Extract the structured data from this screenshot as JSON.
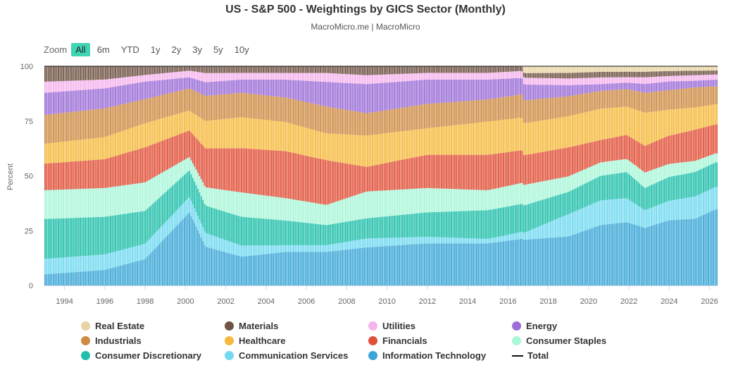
{
  "title": "US - S&P 500 - Weightings by GICS Sector (Monthly)",
  "subtitle": "MacroMicro.me | MacroMicro",
  "zoom": {
    "label": "Zoom",
    "buttons": [
      "All",
      "6m",
      "YTD",
      "1y",
      "2y",
      "3y",
      "5y",
      "10y"
    ],
    "active": "All"
  },
  "chart_data": {
    "type": "bar",
    "stacked": true,
    "title": "US - S&P 500 - Weightings by GICS Sector (Monthly)",
    "ylabel": "Percent",
    "ylim": [
      0,
      100
    ],
    "yticks": [
      0,
      25,
      50,
      75,
      100
    ],
    "xlim": [
      1993.0,
      2026.4
    ],
    "xticks": [
      1994,
      1996,
      1998,
      2000,
      2002,
      2004,
      2006,
      2008,
      2010,
      2012,
      2014,
      2016,
      2018,
      2020,
      2022,
      2024,
      2026
    ],
    "legend_position": "bottom",
    "series_order": [
      "Information Technology",
      "Communication Services",
      "Consumer Discretionary",
      "Consumer Staples",
      "Financials",
      "Healthcare",
      "Industrials",
      "Energy",
      "Utilities",
      "Materials",
      "Real Estate"
    ],
    "colors": {
      "Real Estate": "#e8d4a2",
      "Materials": "#6e5243",
      "Utilities": "#f5b4ec",
      "Energy": "#9b6ed7",
      "Industrials": "#cd8b44",
      "Healthcare": "#f5b93d",
      "Financials": "#e05038",
      "Consumer Staples": "#a9f6d8",
      "Consumer Discretionary": "#21bfaa",
      "Communication Services": "#72d9f0",
      "Information Technology": "#3ba6d6",
      "Total": "#111111"
    },
    "anchor_years": [
      1993,
      1996,
      1998,
      2000.2,
      2001,
      2002.8,
      2005,
      2007,
      2009,
      2012,
      2015,
      2016.7,
      2016.8,
      2019,
      2020.6,
      2021.9,
      2022.8,
      2024,
      2025.3,
      2026.3
    ],
    "anchor_series": [
      {
        "name": "Information Technology",
        "values": [
          5,
          7,
          12,
          33,
          17,
          13,
          15,
          15,
          17,
          19,
          19,
          20,
          20,
          22,
          27,
          29,
          26,
          30,
          30,
          34
        ]
      },
      {
        "name": "Communication Services",
        "values": [
          7,
          7,
          7,
          7,
          6,
          5,
          3,
          3,
          4,
          3,
          2,
          3,
          3,
          10,
          11,
          11,
          8,
          9,
          10,
          10
        ]
      },
      {
        "name": "Consumer Discretionary",
        "values": [
          18,
          17,
          15,
          12,
          12,
          13,
          11,
          9,
          9,
          11,
          13,
          12,
          12,
          10,
          11,
          12,
          10,
          11,
          11,
          11
        ]
      },
      {
        "name": "Consumer Staples",
        "values": [
          13,
          13,
          13,
          6,
          8,
          11,
          10,
          9,
          12,
          11,
          9,
          9,
          9,
          7,
          6,
          6,
          7,
          6,
          5,
          4
        ]
      },
      {
        "name": "Financials",
        "values": [
          12,
          13,
          16,
          12,
          17,
          20,
          21,
          20,
          11,
          15,
          16,
          14,
          13,
          13,
          10,
          11,
          12,
          13,
          14,
          13
        ]
      },
      {
        "name": "Healthcare",
        "values": [
          9,
          10,
          11,
          9,
          12,
          14,
          13,
          12,
          14,
          12,
          15,
          14,
          14,
          14,
          14,
          13,
          15,
          12,
          10,
          9
        ]
      },
      {
        "name": "Industrials",
        "values": [
          13,
          13,
          11,
          10,
          11,
          11,
          11,
          12,
          10,
          11,
          10,
          10,
          10,
          9,
          8,
          8,
          9,
          9,
          9,
          8
        ]
      },
      {
        "name": "Energy",
        "values": [
          10,
          9,
          8,
          5,
          6,
          6,
          8,
          11,
          13,
          11,
          9,
          7,
          7,
          5,
          3,
          3,
          4,
          4,
          3,
          3
        ]
      },
      {
        "name": "Utilities",
        "values": [
          5,
          4,
          3,
          3,
          4,
          3,
          3,
          4,
          4,
          3,
          3,
          3,
          3,
          3,
          3,
          2.5,
          3,
          2.5,
          2.5,
          2.3
        ]
      },
      {
        "name": "Materials",
        "values": [
          7,
          6,
          4,
          2,
          3,
          3,
          3,
          3,
          4,
          3,
          3,
          2,
          2,
          2.5,
          2.5,
          2.5,
          2.5,
          2.3,
          2,
          1.8
        ]
      },
      {
        "name": "Real Estate",
        "values": [
          0,
          0,
          0,
          0,
          0,
          0,
          0,
          0,
          0,
          0,
          0,
          0,
          3,
          3,
          2.5,
          2.5,
          2.5,
          2.2,
          2,
          1.9
        ]
      }
    ],
    "total": 100
  },
  "legend": [
    {
      "label": "Real Estate",
      "color": "#e8d4a2",
      "kind": "dot"
    },
    {
      "label": "Materials",
      "color": "#6e5243",
      "kind": "dot"
    },
    {
      "label": "Utilities",
      "color": "#f5b4ec",
      "kind": "dot"
    },
    {
      "label": "Energy",
      "color": "#9b6ed7",
      "kind": "dot"
    },
    {
      "label": "Industrials",
      "color": "#cd8b44",
      "kind": "dot"
    },
    {
      "label": "Healthcare",
      "color": "#f5b93d",
      "kind": "dot"
    },
    {
      "label": "Financials",
      "color": "#e05038",
      "kind": "dot"
    },
    {
      "label": "Consumer Staples",
      "color": "#a9f6d8",
      "kind": "dot"
    },
    {
      "label": "Consumer Discretionary",
      "color": "#21bfaa",
      "kind": "dot"
    },
    {
      "label": "Communication Services",
      "color": "#72d9f0",
      "kind": "dot"
    },
    {
      "label": "Information Technology",
      "color": "#3ba6d6",
      "kind": "dot"
    },
    {
      "label": "Total",
      "color": "#111111",
      "kind": "line"
    }
  ]
}
